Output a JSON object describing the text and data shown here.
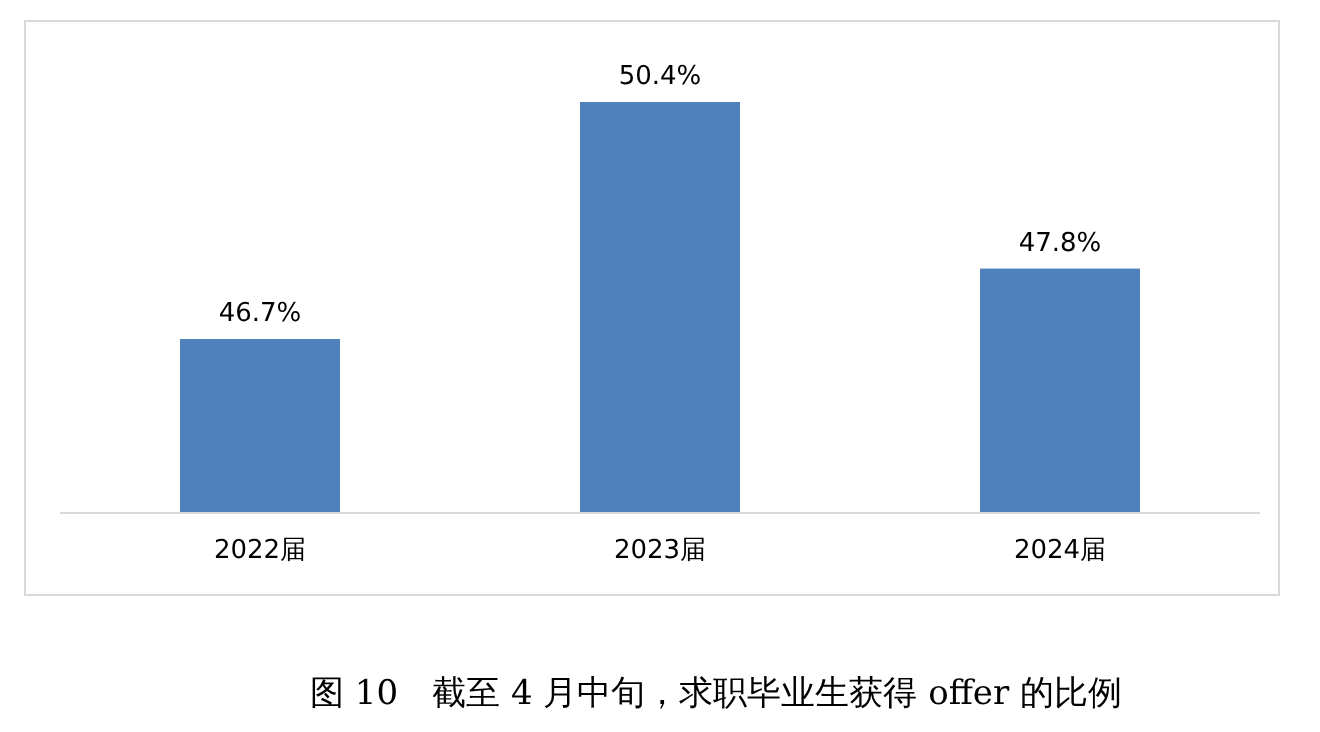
{
  "chart_data": {
    "type": "bar",
    "title": "图 10　截至 4 月中旬，求职毕业生获得 offer 的比例",
    "categories": [
      "2022届",
      "2023届",
      "2024届"
    ],
    "values": [
      46.7,
      50.4,
      47.8
    ],
    "value_labels": [
      "46.7%",
      "50.4%",
      "47.8%"
    ],
    "color": "#4f81bd",
    "ylim": [
      44,
      50.4
    ],
    "tick_labels": "x"
  }
}
